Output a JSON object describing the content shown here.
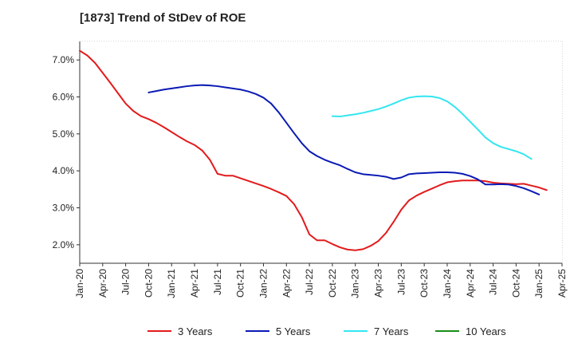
{
  "chart_data": {
    "type": "line",
    "title": "[1873]  Trend of StDev of ROE",
    "xlabel": "",
    "ylabel": "",
    "x_ticks": [
      "Jan-20",
      "Apr-20",
      "Jul-20",
      "Oct-20",
      "Jan-21",
      "Apr-21",
      "Jul-21",
      "Oct-21",
      "Jan-22",
      "Apr-22",
      "Jul-22",
      "Oct-22",
      "Jan-23",
      "Apr-23",
      "Jul-23",
      "Oct-23",
      "Jan-24",
      "Apr-24",
      "Jul-24",
      "Oct-24",
      "Jan-25",
      "Apr-25"
    ],
    "y_ticks": [
      "2.0%",
      "3.0%",
      "4.0%",
      "5.0%",
      "6.0%",
      "7.0%"
    ],
    "y_tick_values": [
      2.0,
      3.0,
      4.0,
      5.0,
      6.0,
      7.0
    ],
    "ylim": [
      1.5,
      7.5
    ],
    "xlim": [
      "Jan-20",
      "Apr-25"
    ],
    "grid": true,
    "legend_position": "bottom",
    "series": [
      {
        "name": "3 Years",
        "color": "#e31a1c",
        "points": [
          [
            "Jan-20",
            7.25
          ],
          [
            "Feb-20",
            7.12
          ],
          [
            "Mar-20",
            6.92
          ],
          [
            "Apr-20",
            6.65
          ],
          [
            "May-20",
            6.38
          ],
          [
            "Jun-20",
            6.1
          ],
          [
            "Jul-20",
            5.82
          ],
          [
            "Aug-20",
            5.62
          ],
          [
            "Sep-20",
            5.48
          ],
          [
            "Oct-20",
            5.4
          ],
          [
            "Nov-20",
            5.3
          ],
          [
            "Dec-20",
            5.18
          ],
          [
            "Jan-21",
            5.05
          ],
          [
            "Feb-21",
            4.92
          ],
          [
            "Mar-21",
            4.8
          ],
          [
            "Apr-21",
            4.7
          ],
          [
            "May-21",
            4.55
          ],
          [
            "Jun-21",
            4.3
          ],
          [
            "Jul-21",
            3.92
          ],
          [
            "Aug-21",
            3.87
          ],
          [
            "Sep-21",
            3.87
          ],
          [
            "Oct-21",
            3.8
          ],
          [
            "Nov-21",
            3.73
          ],
          [
            "Dec-21",
            3.66
          ],
          [
            "Jan-22",
            3.59
          ],
          [
            "Feb-22",
            3.51
          ],
          [
            "Mar-22",
            3.42
          ],
          [
            "Apr-22",
            3.32
          ],
          [
            "May-22",
            3.1
          ],
          [
            "Jun-22",
            2.75
          ],
          [
            "Jul-22",
            2.28
          ],
          [
            "Aug-22",
            2.12
          ],
          [
            "Sep-22",
            2.12
          ],
          [
            "Oct-22",
            2.02
          ],
          [
            "Nov-22",
            1.93
          ],
          [
            "Dec-22",
            1.87
          ],
          [
            "Jan-23",
            1.85
          ],
          [
            "Feb-23",
            1.88
          ],
          [
            "Mar-23",
            1.97
          ],
          [
            "Apr-23",
            2.1
          ],
          [
            "May-23",
            2.32
          ],
          [
            "Jun-23",
            2.62
          ],
          [
            "Jul-23",
            2.95
          ],
          [
            "Aug-23",
            3.2
          ],
          [
            "Sep-23",
            3.33
          ],
          [
            "Oct-23",
            3.43
          ],
          [
            "Nov-23",
            3.52
          ],
          [
            "Dec-23",
            3.61
          ],
          [
            "Jan-24",
            3.69
          ],
          [
            "Feb-24",
            3.72
          ],
          [
            "Mar-24",
            3.74
          ],
          [
            "Apr-24",
            3.74
          ],
          [
            "May-24",
            3.74
          ],
          [
            "Jun-24",
            3.72
          ],
          [
            "Jul-24",
            3.68
          ],
          [
            "Aug-24",
            3.66
          ],
          [
            "Sep-24",
            3.65
          ],
          [
            "Oct-24",
            3.64
          ],
          [
            "Nov-24",
            3.65
          ],
          [
            "Dec-24",
            3.6
          ],
          [
            "Jan-25",
            3.55
          ],
          [
            "Feb-25",
            3.48
          ]
        ]
      },
      {
        "name": "5 Years",
        "color": "#0a1ab4",
        "points": [
          [
            "Oct-20",
            6.12
          ],
          [
            "Nov-20",
            6.16
          ],
          [
            "Dec-20",
            6.2
          ],
          [
            "Jan-21",
            6.23
          ],
          [
            "Feb-21",
            6.26
          ],
          [
            "Mar-21",
            6.29
          ],
          [
            "Apr-21",
            6.31
          ],
          [
            "May-21",
            6.32
          ],
          [
            "Jun-21",
            6.31
          ],
          [
            "Jul-21",
            6.29
          ],
          [
            "Aug-21",
            6.26
          ],
          [
            "Sep-21",
            6.23
          ],
          [
            "Oct-21",
            6.2
          ],
          [
            "Nov-21",
            6.15
          ],
          [
            "Dec-21",
            6.08
          ],
          [
            "Jan-22",
            5.98
          ],
          [
            "Feb-22",
            5.82
          ],
          [
            "Mar-22",
            5.58
          ],
          [
            "Apr-22",
            5.3
          ],
          [
            "May-22",
            5.02
          ],
          [
            "Jun-22",
            4.75
          ],
          [
            "Jul-22",
            4.53
          ],
          [
            "Aug-22",
            4.4
          ],
          [
            "Sep-22",
            4.3
          ],
          [
            "Oct-22",
            4.22
          ],
          [
            "Nov-22",
            4.15
          ],
          [
            "Dec-22",
            4.05
          ],
          [
            "Jan-23",
            3.96
          ],
          [
            "Feb-23",
            3.91
          ],
          [
            "Mar-23",
            3.89
          ],
          [
            "Apr-23",
            3.87
          ],
          [
            "May-23",
            3.84
          ],
          [
            "Jun-23",
            3.78
          ],
          [
            "Jul-23",
            3.82
          ],
          [
            "Aug-23",
            3.91
          ],
          [
            "Sep-23",
            3.93
          ],
          [
            "Oct-23",
            3.94
          ],
          [
            "Nov-23",
            3.95
          ],
          [
            "Dec-23",
            3.96
          ],
          [
            "Jan-24",
            3.96
          ],
          [
            "Feb-24",
            3.95
          ],
          [
            "Mar-24",
            3.92
          ],
          [
            "Apr-24",
            3.86
          ],
          [
            "May-24",
            3.77
          ],
          [
            "Jun-24",
            3.63
          ],
          [
            "Jul-24",
            3.63
          ],
          [
            "Aug-24",
            3.64
          ],
          [
            "Sep-24",
            3.63
          ],
          [
            "Oct-24",
            3.59
          ],
          [
            "Nov-24",
            3.53
          ],
          [
            "Dec-24",
            3.45
          ],
          [
            "Jan-25",
            3.36
          ]
        ]
      },
      {
        "name": "7 Years",
        "color": "#33e6f0",
        "points": [
          [
            "Oct-22",
            5.48
          ],
          [
            "Nov-22",
            5.47
          ],
          [
            "Dec-22",
            5.5
          ],
          [
            "Jan-23",
            5.53
          ],
          [
            "Feb-23",
            5.57
          ],
          [
            "Mar-23",
            5.62
          ],
          [
            "Apr-23",
            5.67
          ],
          [
            "May-23",
            5.74
          ],
          [
            "Jun-23",
            5.82
          ],
          [
            "Jul-23",
            5.91
          ],
          [
            "Aug-23",
            5.98
          ],
          [
            "Sep-23",
            6.01
          ],
          [
            "Oct-23",
            6.02
          ],
          [
            "Nov-23",
            6.01
          ],
          [
            "Dec-23",
            5.97
          ],
          [
            "Jan-24",
            5.88
          ],
          [
            "Feb-24",
            5.73
          ],
          [
            "Mar-24",
            5.54
          ],
          [
            "Apr-24",
            5.33
          ],
          [
            "May-24",
            5.12
          ],
          [
            "Jun-24",
            4.9
          ],
          [
            "Jul-24",
            4.75
          ],
          [
            "Aug-24",
            4.65
          ],
          [
            "Sep-24",
            4.59
          ],
          [
            "Oct-24",
            4.53
          ],
          [
            "Nov-24",
            4.45
          ],
          [
            "Dec-24",
            4.32
          ]
        ]
      },
      {
        "name": "10 Years",
        "color": "#1a8c1a",
        "points": []
      }
    ]
  }
}
